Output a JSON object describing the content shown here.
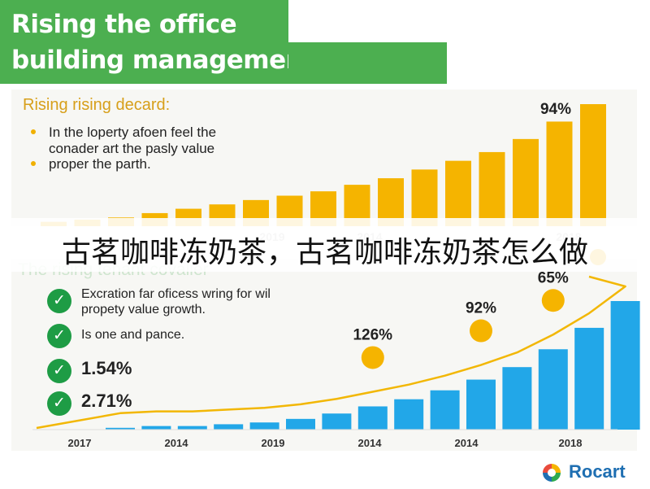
{
  "title": {
    "line1": "Rising the office",
    "line2": "building management fees"
  },
  "top_section": {
    "heading": "Rising rising decard:",
    "bullets": [
      "In the loperty afoen feel the",
      "conader art the pasly value",
      "proper the parth."
    ]
  },
  "overlay_caption": "古茗咖啡冻奶茶，古茗咖啡冻奶茶怎么做",
  "bottom_section": {
    "heading": "The rising tenant covaller",
    "checklist": [
      "Excration far oficess wring for wil",
      "propety value growth.",
      "Is one and pance.",
      "1.54%",
      "2.71%"
    ]
  },
  "chart_data": [
    {
      "type": "bar",
      "color": "#f5b400",
      "values": [
        2,
        3,
        4,
        6,
        8,
        10,
        12,
        14,
        16,
        19,
        22,
        26,
        30,
        34,
        40,
        48,
        56
      ],
      "tick_labels": [
        "2019",
        "2014",
        "2018"
      ],
      "annotations": [
        "94%"
      ],
      "grid": false
    },
    {
      "type": "bar",
      "color": "#22a7e8",
      "values": [
        1,
        2,
        2,
        3,
        4,
        6,
        9,
        13,
        17,
        22,
        28,
        35,
        45,
        57,
        72
      ],
      "trend_line_color": "#f2b705",
      "tick_labels": [
        "2017",
        "2014",
        "2019",
        "2014",
        "2014",
        "2018"
      ],
      "annotations": [
        "126%",
        "92%",
        "65%"
      ],
      "grid": false
    }
  ],
  "logo": {
    "text": "Rocart",
    "colors": [
      "#e94b3c",
      "#f5b400",
      "#2eaa4f",
      "#1f6fb2"
    ]
  }
}
